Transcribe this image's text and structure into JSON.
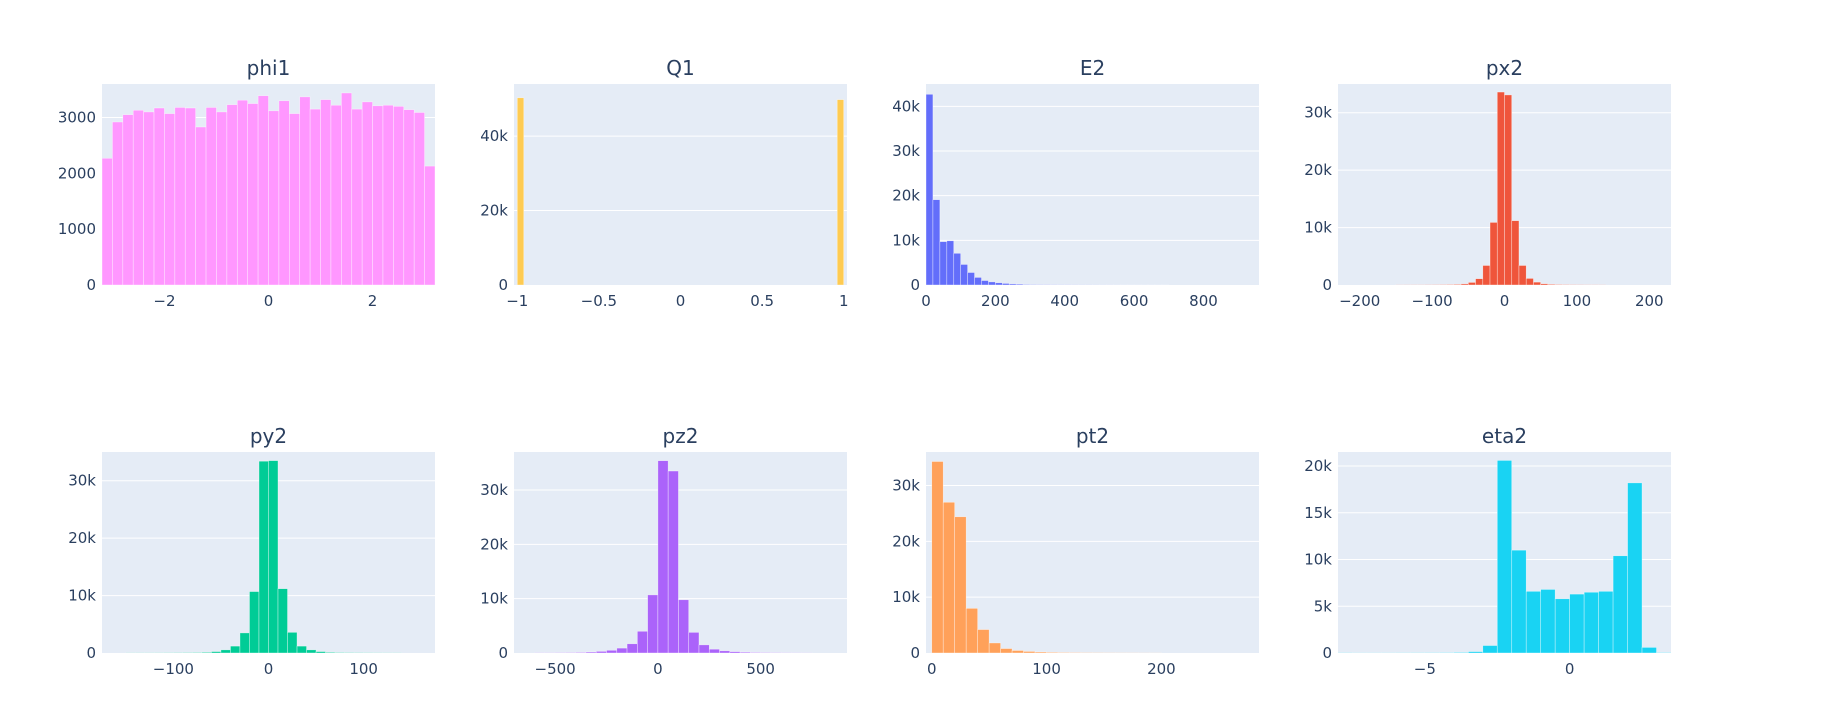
{
  "chart_data": [
    {
      "type": "bar",
      "title": "phi1",
      "color": "#FF97FF",
      "xlim": [
        -3.2,
        3.2
      ],
      "ylim": [
        0,
        3600
      ],
      "xticks": [
        {
          "v": -2,
          "label": "−2"
        },
        {
          "v": 0,
          "label": "0"
        },
        {
          "v": 2,
          "label": "2"
        }
      ],
      "yticks": [
        {
          "v": 0,
          "label": "0"
        },
        {
          "v": 1000,
          "label": "1000"
        },
        {
          "v": 2000,
          "label": "2000"
        },
        {
          "v": 3000,
          "label": "3000"
        }
      ],
      "bins": [
        [
          -3.2,
          -3.0,
          2270
        ],
        [
          -3.0,
          -2.8,
          2920
        ],
        [
          -2.8,
          -2.6,
          3050
        ],
        [
          -2.6,
          -2.4,
          3130
        ],
        [
          -2.4,
          -2.2,
          3100
        ],
        [
          -2.2,
          -2.0,
          3170
        ],
        [
          -2.0,
          -1.8,
          3070
        ],
        [
          -1.8,
          -1.6,
          3180
        ],
        [
          -1.6,
          -1.4,
          3170
        ],
        [
          -1.4,
          -1.2,
          2830
        ],
        [
          -1.2,
          -1.0,
          3180
        ],
        [
          -1.0,
          -0.8,
          3100
        ],
        [
          -0.8,
          -0.6,
          3230
        ],
        [
          -0.6,
          -0.4,
          3310
        ],
        [
          -0.4,
          -0.2,
          3250
        ],
        [
          -0.2,
          0.0,
          3390
        ],
        [
          0.0,
          0.2,
          3120
        ],
        [
          0.2,
          0.4,
          3300
        ],
        [
          0.4,
          0.6,
          3070
        ],
        [
          0.6,
          0.8,
          3370
        ],
        [
          0.8,
          1.0,
          3150
        ],
        [
          1.0,
          1.2,
          3320
        ],
        [
          1.2,
          1.4,
          3220
        ],
        [
          1.4,
          1.6,
          3440
        ],
        [
          1.6,
          1.8,
          3150
        ],
        [
          1.8,
          2.0,
          3280
        ],
        [
          2.0,
          2.2,
          3210
        ],
        [
          2.2,
          2.4,
          3220
        ],
        [
          2.4,
          2.6,
          3200
        ],
        [
          2.6,
          2.8,
          3140
        ],
        [
          2.8,
          3.0,
          3090
        ],
        [
          3.0,
          3.2,
          2130
        ]
      ]
    },
    {
      "type": "bar",
      "title": "Q1",
      "color": "#FECB52",
      "xlim": [
        -1.02,
        1.02
      ],
      "ylim": [
        0,
        54000
      ],
      "xticks": [
        {
          "v": -1,
          "label": "−1"
        },
        {
          "v": -0.5,
          "label": "−0.5"
        },
        {
          "v": 0,
          "label": "0"
        },
        {
          "v": 0.5,
          "label": "0.5"
        },
        {
          "v": 1,
          "label": "1"
        }
      ],
      "yticks": [
        {
          "v": 0,
          "label": "0"
        },
        {
          "v": 20000,
          "label": "20k"
        },
        {
          "v": 40000,
          "label": "40k"
        }
      ],
      "bins": [
        [
          -1.0,
          -0.96,
          50300
        ],
        [
          0.96,
          1.0,
          49800
        ]
      ]
    },
    {
      "type": "bar",
      "title": "E2",
      "color": "#636EFA",
      "xlim": [
        0,
        960
      ],
      "ylim": [
        0,
        45000
      ],
      "xticks": [
        {
          "v": 0,
          "label": "0"
        },
        {
          "v": 200,
          "label": "200"
        },
        {
          "v": 400,
          "label": "400"
        },
        {
          "v": 600,
          "label": "600"
        },
        {
          "v": 800,
          "label": "800"
        }
      ],
      "yticks": [
        {
          "v": 0,
          "label": "0"
        },
        {
          "v": 10000,
          "label": "10k"
        },
        {
          "v": 20000,
          "label": "20k"
        },
        {
          "v": 30000,
          "label": "30k"
        },
        {
          "v": 40000,
          "label": "40k"
        }
      ],
      "bins": [
        [
          0,
          20,
          42700
        ],
        [
          20,
          40,
          19100
        ],
        [
          40,
          60,
          9700
        ],
        [
          60,
          80,
          9900
        ],
        [
          80,
          100,
          7100
        ],
        [
          100,
          120,
          4600
        ],
        [
          120,
          140,
          2800
        ],
        [
          140,
          160,
          1700
        ],
        [
          160,
          180,
          1000
        ],
        [
          180,
          200,
          700
        ],
        [
          200,
          220,
          500
        ],
        [
          220,
          240,
          350
        ],
        [
          240,
          260,
          250
        ],
        [
          260,
          280,
          200
        ],
        [
          280,
          300,
          120
        ],
        [
          300,
          320,
          90
        ],
        [
          320,
          340,
          70
        ],
        [
          340,
          360,
          60
        ],
        [
          360,
          380,
          50
        ],
        [
          380,
          400,
          40
        ],
        [
          400,
          420,
          35
        ],
        [
          420,
          440,
          30
        ],
        [
          440,
          460,
          25
        ],
        [
          460,
          480,
          20
        ],
        [
          480,
          500,
          18
        ],
        [
          500,
          520,
          15
        ],
        [
          520,
          540,
          10
        ],
        [
          540,
          560,
          8
        ],
        [
          560,
          580,
          6
        ],
        [
          580,
          600,
          5
        ],
        [
          600,
          620,
          5
        ],
        [
          620,
          640,
          4
        ],
        [
          640,
          660,
          3
        ],
        [
          660,
          680,
          3
        ],
        [
          680,
          700,
          2
        ]
      ]
    },
    {
      "type": "bar",
      "title": "px2",
      "color": "#EF553B",
      "xlim": [
        -230,
        230
      ],
      "ylim": [
        0,
        35000
      ],
      "xticks": [
        {
          "v": -200,
          "label": "−200"
        },
        {
          "v": -100,
          "label": "−100"
        },
        {
          "v": 0,
          "label": "0"
        },
        {
          "v": 100,
          "label": "100"
        },
        {
          "v": 200,
          "label": "200"
        }
      ],
      "yticks": [
        {
          "v": 0,
          "label": "0"
        },
        {
          "v": 10000,
          "label": "10k"
        },
        {
          "v": 20000,
          "label": "20k"
        },
        {
          "v": 30000,
          "label": "30k"
        }
      ],
      "bins": [
        [
          -150,
          -140,
          20
        ],
        [
          -140,
          -130,
          25
        ],
        [
          -130,
          -120,
          30
        ],
        [
          -120,
          -110,
          35
        ],
        [
          -110,
          -100,
          45
        ],
        [
          -100,
          -90,
          55
        ],
        [
          -90,
          -80,
          70
        ],
        [
          -80,
          -70,
          90
        ],
        [
          -70,
          -60,
          120
        ],
        [
          -60,
          -50,
          200
        ],
        [
          -50,
          -40,
          450
        ],
        [
          -40,
          -30,
          1100
        ],
        [
          -30,
          -20,
          3400
        ],
        [
          -20,
          -10,
          10900
        ],
        [
          -10,
          0,
          33600
        ],
        [
          0,
          10,
          33100
        ],
        [
          10,
          20,
          11200
        ],
        [
          20,
          30,
          3400
        ],
        [
          30,
          40,
          1150
        ],
        [
          40,
          50,
          500
        ],
        [
          50,
          60,
          220
        ],
        [
          60,
          70,
          130
        ],
        [
          70,
          80,
          90
        ],
        [
          80,
          90,
          70
        ],
        [
          90,
          100,
          55
        ],
        [
          100,
          110,
          45
        ],
        [
          110,
          120,
          35
        ],
        [
          120,
          130,
          30
        ],
        [
          130,
          140,
          25
        ]
      ]
    },
    {
      "type": "bar",
      "title": "py2",
      "color": "#00CC96",
      "xlim": [
        -175,
        175
      ],
      "ylim": [
        0,
        35000
      ],
      "xticks": [
        {
          "v": -100,
          "label": "−100"
        },
        {
          "v": 0,
          "label": "0"
        },
        {
          "v": 100,
          "label": "100"
        }
      ],
      "yticks": [
        {
          "v": 0,
          "label": "0"
        },
        {
          "v": 10000,
          "label": "10k"
        },
        {
          "v": 20000,
          "label": "20k"
        },
        {
          "v": 30000,
          "label": "30k"
        }
      ],
      "bins": [
        [
          -150,
          -140,
          20
        ],
        [
          -140,
          -130,
          25
        ],
        [
          -130,
          -120,
          30
        ],
        [
          -120,
          -110,
          35
        ],
        [
          -110,
          -100,
          45
        ],
        [
          -100,
          -90,
          55
        ],
        [
          -90,
          -80,
          70
        ],
        [
          -80,
          -70,
          90
        ],
        [
          -70,
          -60,
          130
        ],
        [
          -60,
          -50,
          250
        ],
        [
          -50,
          -40,
          550
        ],
        [
          -40,
          -30,
          1200
        ],
        [
          -30,
          -20,
          3500
        ],
        [
          -20,
          -10,
          10700
        ],
        [
          -10,
          0,
          33400
        ],
        [
          0,
          10,
          33500
        ],
        [
          10,
          20,
          11200
        ],
        [
          20,
          30,
          3600
        ],
        [
          30,
          40,
          1200
        ],
        [
          40,
          50,
          550
        ],
        [
          50,
          60,
          250
        ],
        [
          60,
          70,
          130
        ],
        [
          70,
          80,
          90
        ],
        [
          80,
          90,
          70
        ],
        [
          90,
          100,
          55
        ],
        [
          100,
          110,
          45
        ],
        [
          110,
          120,
          35
        ],
        [
          120,
          130,
          30
        ],
        [
          130,
          140,
          25
        ]
      ]
    },
    {
      "type": "bar",
      "title": "pz2",
      "color": "#AB63FA",
      "xlim": [
        -700,
        920
      ],
      "ylim": [
        0,
        37000
      ],
      "xticks": [
        {
          "v": -500,
          "label": "−500"
        },
        {
          "v": 0,
          "label": "0"
        },
        {
          "v": 500,
          "label": "500"
        }
      ],
      "yticks": [
        {
          "v": 0,
          "label": "0"
        },
        {
          "v": 10000,
          "label": "10k"
        },
        {
          "v": 20000,
          "label": "20k"
        },
        {
          "v": 30000,
          "label": "30k"
        }
      ],
      "bins": [
        [
          -600,
          -550,
          40
        ],
        [
          -550,
          -500,
          40
        ],
        [
          -500,
          -450,
          60
        ],
        [
          -450,
          -400,
          80
        ],
        [
          -400,
          -350,
          120
        ],
        [
          -350,
          -300,
          180
        ],
        [
          -300,
          -250,
          300
        ],
        [
          -250,
          -200,
          500
        ],
        [
          -200,
          -150,
          900
        ],
        [
          -150,
          -100,
          1700
        ],
        [
          -100,
          -50,
          4000
        ],
        [
          -50,
          0,
          10700
        ],
        [
          0,
          50,
          35400
        ],
        [
          50,
          100,
          33500
        ],
        [
          100,
          150,
          9800
        ],
        [
          150,
          200,
          3800
        ],
        [
          200,
          250,
          1500
        ],
        [
          250,
          300,
          700
        ],
        [
          300,
          350,
          400
        ],
        [
          350,
          400,
          250
        ],
        [
          400,
          450,
          160
        ],
        [
          450,
          500,
          110
        ],
        [
          500,
          550,
          80
        ],
        [
          550,
          600,
          60
        ],
        [
          600,
          650,
          40
        ],
        [
          650,
          700,
          30
        ],
        [
          700,
          750,
          20
        ]
      ]
    },
    {
      "type": "bar",
      "title": "pt2",
      "color": "#FFA15A",
      "xlim": [
        -5,
        285
      ],
      "ylim": [
        0,
        36000
      ],
      "xticks": [
        {
          "v": 0,
          "label": "0"
        },
        {
          "v": 100,
          "label": "100"
        },
        {
          "v": 200,
          "label": "200"
        }
      ],
      "yticks": [
        {
          "v": 0,
          "label": "0"
        },
        {
          "v": 10000,
          "label": "10k"
        },
        {
          "v": 20000,
          "label": "20k"
        },
        {
          "v": 30000,
          "label": "30k"
        }
      ],
      "bins": [
        [
          0,
          10,
          34300
        ],
        [
          10,
          20,
          27000
        ],
        [
          20,
          30,
          24400
        ],
        [
          30,
          40,
          8000
        ],
        [
          40,
          50,
          4200
        ],
        [
          50,
          60,
          1800
        ],
        [
          60,
          70,
          800
        ],
        [
          70,
          80,
          450
        ],
        [
          80,
          90,
          280
        ],
        [
          90,
          100,
          180
        ],
        [
          100,
          110,
          130
        ],
        [
          110,
          120,
          100
        ],
        [
          120,
          130,
          80
        ],
        [
          130,
          140,
          60
        ],
        [
          140,
          150,
          50
        ],
        [
          150,
          160,
          40
        ],
        [
          160,
          170,
          30
        ],
        [
          170,
          180,
          25
        ],
        [
          180,
          190,
          20
        ],
        [
          190,
          200,
          15
        ]
      ]
    },
    {
      "type": "bar",
      "title": "eta2",
      "color": "#19D3F3",
      "xlim": [
        -8.0,
        3.5
      ],
      "ylim": [
        0,
        21500
      ],
      "xticks": [
        {
          "v": -5,
          "label": "−5"
        },
        {
          "v": 0,
          "label": "0"
        }
      ],
      "yticks": [
        {
          "v": 0,
          "label": "0"
        },
        {
          "v": 5000,
          "label": "5k"
        },
        {
          "v": 10000,
          "label": "10k"
        },
        {
          "v": 15000,
          "label": "15k"
        },
        {
          "v": 20000,
          "label": "20k"
        }
      ],
      "bins": [
        [
          -8.0,
          -7.5,
          30
        ],
        [
          -7.5,
          -7.0,
          15
        ],
        [
          -7.0,
          -6.5,
          15
        ],
        [
          -6.5,
          -6.0,
          20
        ],
        [
          -6.0,
          -5.5,
          25
        ],
        [
          -5.5,
          -5.0,
          30
        ],
        [
          -5.0,
          -4.5,
          35
        ],
        [
          -4.5,
          -4.0,
          45
        ],
        [
          -4.0,
          -3.5,
          70
        ],
        [
          -3.5,
          -3.0,
          150
        ],
        [
          -3.0,
          -2.5,
          800
        ],
        [
          -2.5,
          -2.0,
          20600
        ],
        [
          -2.0,
          -1.5,
          11000
        ],
        [
          -1.5,
          -1.0,
          6600
        ],
        [
          -1.0,
          -0.5,
          6800
        ],
        [
          -0.5,
          0.0,
          5800
        ],
        [
          0.0,
          0.5,
          6300
        ],
        [
          0.5,
          1.0,
          6500
        ],
        [
          1.0,
          1.5,
          6600
        ],
        [
          1.5,
          2.0,
          10400
        ],
        [
          2.0,
          2.5,
          18200
        ],
        [
          2.5,
          3.0,
          600
        ],
        [
          3.0,
          3.5,
          50
        ]
      ]
    }
  ]
}
